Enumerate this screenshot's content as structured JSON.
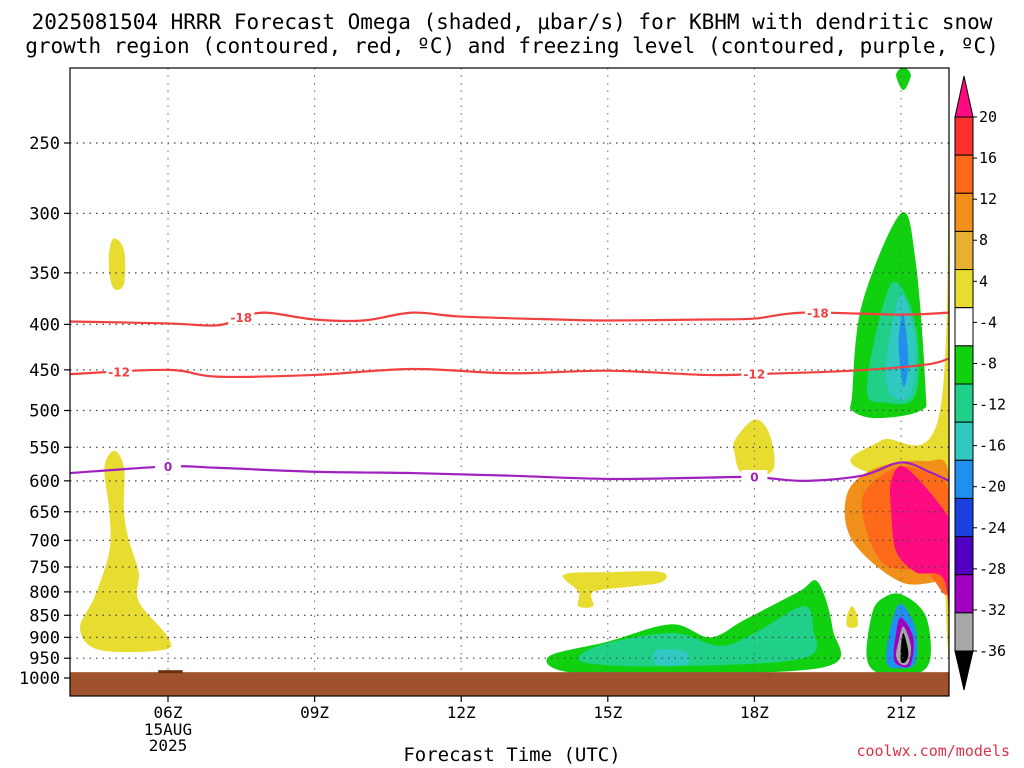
{
  "title_line1": "2025081504 HRRR Forecast Omega (shaded, μbar/s) for KBHM with dendritic snow",
  "title_line2": "growth region (contoured, red, ºC) and freezing level (contoured, purple, ºC)",
  "xaxis_title": "Forecast Time (UTC)",
  "credit": "coolwx.com/models",
  "chart_data": {
    "type": "heatmap",
    "title": "2025081504 HRRR Forecast Omega (shaded, μbar/s) for KBHM with dendritic snow growth region (contoured, red, ºC) and freezing level (contoured, purple, ºC)",
    "xlabel": "Forecast Time (UTC)",
    "ylabel": "",
    "x_range_utc_hours": [
      4,
      22.6
    ],
    "y_range_hpa": [
      200,
      1000
    ],
    "y_scale": "log-pressure (reversed)",
    "grid": true,
    "x_ticks": [
      {
        "hour": 6,
        "label": "06Z",
        "sub": [
          "15AUG",
          "2025"
        ]
      },
      {
        "hour": 9,
        "label": "09Z"
      },
      {
        "hour": 12,
        "label": "12Z"
      },
      {
        "hour": 15,
        "label": "15Z"
      },
      {
        "hour": 18,
        "label": "18Z"
      },
      {
        "hour": 21,
        "label": "21Z"
      }
    ],
    "y_ticks": [
      250,
      300,
      350,
      400,
      450,
      500,
      550,
      600,
      650,
      700,
      750,
      800,
      850,
      900,
      950,
      1000
    ],
    "colorbar": {
      "labels": [
        "20",
        "16",
        "12",
        "8",
        "4",
        "-4",
        "-8",
        "-12",
        "-16",
        "-20",
        "-24",
        "-28",
        "-32",
        "-36"
      ],
      "colors": [
        "#ff0a80",
        "#ff3030",
        "#ff6a1a",
        "#f0901a",
        "#e8b030",
        "#e8dc30",
        "#ffffff",
        "#10d010",
        "#20d088",
        "#30c8c0",
        "#2090f0",
        "#1a40e0",
        "#5000c0",
        "#a000c0",
        "#a8a8a8",
        "#000000"
      ]
    },
    "contours": [
      {
        "kind": "temperature",
        "color": "#f04040",
        "level_c": -18,
        "label": "-18",
        "points": [
          [
            4,
            397
          ],
          [
            6,
            399
          ],
          [
            7,
            401
          ],
          [
            7.5,
            393
          ],
          [
            8,
            388
          ],
          [
            9,
            395
          ],
          [
            10,
            396
          ],
          [
            11,
            388
          ],
          [
            12,
            392
          ],
          [
            14,
            395
          ],
          [
            15,
            396
          ],
          [
            17,
            395
          ],
          [
            18,
            394
          ],
          [
            19,
            388
          ],
          [
            21,
            390
          ],
          [
            22.6,
            388
          ]
        ]
      },
      {
        "kind": "temperature",
        "color": "#f04040",
        "level_c": -12,
        "label": "-12",
        "points": [
          [
            4,
            455
          ],
          [
            6,
            450
          ],
          [
            7,
            458
          ],
          [
            9,
            456
          ],
          [
            11,
            449
          ],
          [
            13,
            454
          ],
          [
            15,
            451
          ],
          [
            17,
            456
          ],
          [
            18,
            455
          ],
          [
            20,
            451
          ],
          [
            21.5,
            444
          ],
          [
            22.6,
            437
          ]
        ]
      },
      {
        "kind": "freezing_level",
        "color": "#a020c0",
        "level_c": 0,
        "label": "0",
        "points": [
          [
            4,
            588
          ],
          [
            6,
            578
          ],
          [
            7,
            580
          ],
          [
            9,
            586
          ],
          [
            11,
            588
          ],
          [
            13,
            592
          ],
          [
            15,
            597
          ],
          [
            17,
            595
          ],
          [
            18,
            594
          ],
          [
            19,
            600
          ],
          [
            20.2,
            592
          ],
          [
            21,
            572
          ],
          [
            21.6,
            587
          ],
          [
            22.6,
            600
          ]
        ]
      }
    ],
    "shaded_regions": [
      {
        "omega_bin": "4",
        "color": "#e8dc30",
        "points": [
          [
            4.9,
            320
          ],
          [
            5.1,
            330
          ],
          [
            5.1,
            360
          ],
          [
            4.9,
            365
          ],
          [
            4.8,
            350
          ],
          [
            4.8,
            330
          ]
        ]
      },
      {
        "omega_bin": "4",
        "color": "#e8dc30",
        "points": [
          [
            4.9,
            555
          ],
          [
            5.1,
            580
          ],
          [
            5.1,
            650
          ],
          [
            5.2,
            700
          ],
          [
            5.4,
            760
          ],
          [
            5.4,
            820
          ],
          [
            6,
            900
          ],
          [
            5.9,
            930
          ],
          [
            4.6,
            930
          ],
          [
            4.2,
            880
          ],
          [
            4.5,
            810
          ],
          [
            4.8,
            720
          ],
          [
            4.8,
            650
          ],
          [
            4.7,
            580
          ]
        ]
      },
      {
        "omega_bin": "4",
        "color": "#e8dc30",
        "points": [
          [
            14.1,
            765
          ],
          [
            15.1,
            760
          ],
          [
            16.1,
            760
          ],
          [
            16.1,
            780
          ],
          [
            15.4,
            790
          ],
          [
            14.7,
            800
          ],
          [
            14.7,
            830
          ],
          [
            14.4,
            830
          ],
          [
            14.4,
            800
          ]
        ]
      },
      {
        "omega_bin": "4",
        "color": "#e8dc30",
        "points": [
          [
            17.6,
            540
          ],
          [
            18.0,
            512
          ],
          [
            18.3,
            530
          ],
          [
            18.4,
            580
          ],
          [
            18.0,
            595
          ],
          [
            17.7,
            585
          ],
          [
            17.6,
            560
          ]
        ]
      },
      {
        "omega_bin": "4",
        "color": "#e8dc30",
        "points": [
          [
            20.0,
            830
          ],
          [
            20.1,
            850
          ],
          [
            20.1,
            875
          ],
          [
            19.9,
            875
          ],
          [
            19.9,
            850
          ]
        ]
      },
      {
        "omega_bin": "-4",
        "color": "#10d010",
        "points": [
          [
            15.0,
            910
          ],
          [
            16.3,
            870
          ],
          [
            17.1,
            900
          ],
          [
            17.8,
            860
          ],
          [
            18.9,
            800
          ],
          [
            19.3,
            780
          ],
          [
            19.6,
            880
          ],
          [
            19.5,
            970
          ],
          [
            16.4,
            990
          ],
          [
            14.2,
            985
          ],
          [
            13.8,
            945
          ]
        ]
      },
      {
        "omega_bin": "-8",
        "color": "#20d088",
        "points": [
          [
            14.8,
            920
          ],
          [
            16.3,
            890
          ],
          [
            17.3,
            920
          ],
          [
            18.0,
            890
          ],
          [
            19.0,
            830
          ],
          [
            19.2,
            880
          ],
          [
            19.0,
            950
          ],
          [
            16.3,
            970
          ],
          [
            14.5,
            960
          ]
        ]
      },
      {
        "omega_bin": "-12",
        "color": "#30c8c0",
        "points": [
          [
            16.0,
            930
          ],
          [
            16.6,
            935
          ],
          [
            16.6,
            965
          ],
          [
            16.0,
            965
          ]
        ]
      },
      {
        "omega_bin": "-4",
        "color": "#10d010",
        "points": [
          [
            20.0,
            480
          ],
          [
            20.2,
            380
          ],
          [
            21.0,
            300
          ],
          [
            21.3,
            340
          ],
          [
            21.5,
            470
          ],
          [
            21.4,
            500
          ],
          [
            20.5,
            510
          ],
          [
            20.0,
            500
          ]
        ]
      },
      {
        "omega_bin": "-8",
        "color": "#20d088",
        "points": [
          [
            20.3,
            470
          ],
          [
            20.8,
            360
          ],
          [
            21.3,
            400
          ],
          [
            21.3,
            480
          ],
          [
            20.7,
            490
          ]
        ]
      },
      {
        "omega_bin": "-12",
        "color": "#30c8c0",
        "points": [
          [
            20.7,
            440
          ],
          [
            21.0,
            370
          ],
          [
            21.3,
            420
          ],
          [
            21.2,
            480
          ],
          [
            20.8,
            480
          ]
        ]
      },
      {
        "omega_bin": "-16",
        "color": "#2090f0",
        "points": [
          [
            20.95,
            420
          ],
          [
            21.05,
            390
          ],
          [
            21.15,
            440
          ],
          [
            21.05,
            470
          ]
        ]
      },
      {
        "omega_bin": "4",
        "color": "#e8dc30",
        "points": [
          [
            21.8,
            500
          ],
          [
            22.2,
            200
          ],
          [
            22.6,
            200
          ],
          [
            22.6,
            660
          ],
          [
            21.6,
            620
          ],
          [
            20.0,
            575
          ],
          [
            20.6,
            540
          ]
        ]
      },
      {
        "omega_bin": "4",
        "color": "#e8dc30",
        "points": [
          [
            22.0,
            250
          ],
          [
            22.3,
            200
          ],
          [
            22.6,
            200
          ],
          [
            22.6,
            980
          ],
          [
            22.1,
            980
          ],
          [
            21.9,
            700
          ]
        ]
      },
      {
        "omega_bin": "8",
        "color": "#f0901a",
        "points": [
          [
            22.3,
            260
          ],
          [
            22.6,
            240
          ],
          [
            22.6,
            520
          ],
          [
            22.3,
            450
          ],
          [
            22.3,
            350
          ]
        ]
      },
      {
        "omega_bin": "12",
        "color": "#ff6a1a",
        "points": [
          [
            22.5,
            280
          ],
          [
            22.6,
            270
          ],
          [
            22.6,
            430
          ],
          [
            22.5,
            400
          ]
        ]
      },
      {
        "omega_bin": "8",
        "color": "#f0901a",
        "points": [
          [
            19.9,
            620
          ],
          [
            20.5,
            580
          ],
          [
            21.5,
            570
          ],
          [
            22.6,
            590
          ],
          [
            22.6,
            820
          ],
          [
            21.9,
            780
          ],
          [
            21.0,
            780
          ],
          [
            20.0,
            700
          ]
        ]
      },
      {
        "omega_bin": "12",
        "color": "#ff6a1a",
        "points": [
          [
            20.2,
            630
          ],
          [
            20.9,
            580
          ],
          [
            21.6,
            590
          ],
          [
            22.6,
            620
          ],
          [
            22.6,
            800
          ],
          [
            21.5,
            760
          ],
          [
            20.6,
            740
          ]
        ]
      },
      {
        "omega_bin": "20",
        "color": "#ff0a80",
        "points": [
          [
            20.8,
            600
          ],
          [
            21.1,
            580
          ],
          [
            22.0,
            660
          ],
          [
            22.6,
            700
          ],
          [
            22.6,
            980
          ],
          [
            22.2,
            970
          ],
          [
            21.9,
            780
          ],
          [
            21.3,
            760
          ],
          [
            20.9,
            720
          ],
          [
            20.8,
            650
          ]
        ]
      },
      {
        "omega_bin": "-4",
        "color": "#10d010",
        "points": [
          [
            20.4,
            850
          ],
          [
            20.6,
            815
          ],
          [
            21.0,
            805
          ],
          [
            21.5,
            850
          ],
          [
            21.6,
            950
          ],
          [
            21.3,
            990
          ],
          [
            20.6,
            990
          ],
          [
            20.3,
            950
          ]
        ]
      },
      {
        "omega_bin": "-16",
        "color": "#2090f0",
        "points": [
          [
            20.8,
            870
          ],
          [
            21.0,
            825
          ],
          [
            21.3,
            880
          ],
          [
            21.3,
            960
          ],
          [
            21.0,
            975
          ],
          [
            20.7,
            960
          ]
        ]
      },
      {
        "omega_bin": "-28",
        "color": "#a000c0",
        "points": [
          [
            20.9,
            890
          ],
          [
            21.0,
            855
          ],
          [
            21.25,
            900
          ],
          [
            21.2,
            965
          ],
          [
            21.0,
            970
          ],
          [
            20.85,
            950
          ]
        ]
      },
      {
        "omega_bin": "-32",
        "color": "#a8a8a8",
        "points": [
          [
            20.95,
            910
          ],
          [
            21.05,
            875
          ],
          [
            21.2,
            920
          ],
          [
            21.15,
            962
          ],
          [
            21.0,
            965
          ],
          [
            20.9,
            945
          ]
        ]
      },
      {
        "omega_bin": "-36",
        "color": "#000000",
        "points": [
          [
            21.0,
            920
          ],
          [
            21.05,
            890
          ],
          [
            21.15,
            935
          ],
          [
            21.1,
            958
          ],
          [
            21.0,
            958
          ]
        ]
      },
      {
        "omega_bin": "-4",
        "color": "#10d010",
        "points": [
          [
            20.9,
            210
          ],
          [
            21.0,
            200
          ],
          [
            21.1,
            200
          ],
          [
            21.2,
            210
          ],
          [
            21.05,
            218
          ]
        ]
      },
      {
        "omega_bin": "4",
        "color": "#e8dc30",
        "points": [
          [
            19.9,
            200
          ],
          [
            20.0,
            200
          ],
          [
            19.95,
            205
          ]
        ]
      }
    ],
    "terrain": {
      "color": "#a0522d",
      "top_hpa": 985
    }
  }
}
